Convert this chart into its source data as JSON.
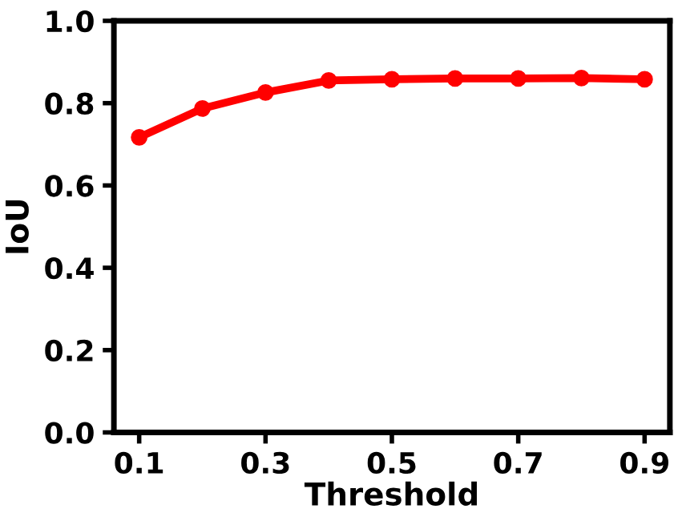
{
  "chart_data": {
    "type": "line",
    "xlabel": "Threshold",
    "ylabel": "IoU",
    "x": [
      0.1,
      0.2,
      0.3,
      0.4,
      0.5,
      0.6,
      0.7,
      0.8,
      0.9
    ],
    "series": [
      {
        "color": "#ff0000",
        "values": [
          0.717,
          0.787,
          0.826,
          0.855,
          0.858,
          0.86,
          0.86,
          0.861,
          0.858
        ]
      }
    ],
    "xlim": [
      0.06,
      0.94
    ],
    "ylim": [
      0.0,
      1.0
    ],
    "xticks": [
      0.1,
      0.3,
      0.5,
      0.7,
      0.9
    ],
    "yticks": [
      {
        "value": 0.0,
        "label": "0.0"
      },
      {
        "value": 0.2,
        "label": "0.2"
      },
      {
        "value": 0.4,
        "label": "0.4"
      },
      {
        "value": 0.6,
        "label": "0.6"
      },
      {
        "value": 0.8,
        "label": "0.8"
      },
      {
        "value": 1.0,
        "label": "1.0"
      }
    ],
    "marker": "circle",
    "line_style": "solid",
    "grid": false,
    "legend": false
  }
}
